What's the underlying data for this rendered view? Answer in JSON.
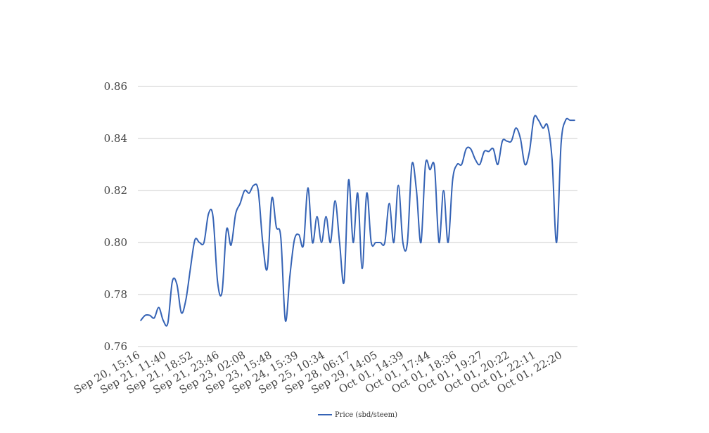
{
  "chart_data": {
    "type": "line",
    "title": "",
    "xlabel": "",
    "ylabel": "",
    "ylim": [
      0.76,
      0.86
    ],
    "y_ticks": [
      "0.76",
      "0.78",
      "0.80",
      "0.82",
      "0.84",
      "0.86"
    ],
    "x_tick_labels": [
      "Sep 20, 15:16",
      "Sep 21, 11:40",
      "Sep 21, 18:52",
      "Sep 21, 23:46",
      "Sep 23, 02:08",
      "Sep 23, 15:48",
      "Sep 24, 15:39",
      "Sep 25, 10:34",
      "Sep 28, 06:17",
      "Sep 29, 14:05",
      "Oct 01, 14:39",
      "Oct 01, 17:44",
      "Oct 01, 18:36",
      "Oct 01, 19:27",
      "Oct 01, 20:22",
      "Oct 01, 22:11",
      "Oct 01, 22:20"
    ],
    "grid": true,
    "legend_position": "bottom-center",
    "series": [
      {
        "name": "Price (sbd/steem)",
        "color": "#3563b5",
        "values": [
          0.77,
          0.772,
          0.772,
          0.771,
          0.775,
          0.77,
          0.769,
          0.785,
          0.784,
          0.773,
          0.778,
          0.79,
          0.801,
          0.8,
          0.8,
          0.811,
          0.81,
          0.785,
          0.781,
          0.805,
          0.799,
          0.811,
          0.815,
          0.82,
          0.819,
          0.822,
          0.82,
          0.8,
          0.79,
          0.817,
          0.806,
          0.802,
          0.77,
          0.787,
          0.801,
          0.803,
          0.799,
          0.821,
          0.8,
          0.81,
          0.8,
          0.81,
          0.8,
          0.816,
          0.8,
          0.785,
          0.824,
          0.8,
          0.819,
          0.79,
          0.819,
          0.8,
          0.8,
          0.8,
          0.8,
          0.815,
          0.8,
          0.822,
          0.8,
          0.8,
          0.83,
          0.82,
          0.8,
          0.83,
          0.828,
          0.829,
          0.8,
          0.82,
          0.8,
          0.824,
          0.83,
          0.83,
          0.836,
          0.836,
          0.832,
          0.83,
          0.835,
          0.835,
          0.836,
          0.83,
          0.839,
          0.839,
          0.839,
          0.844,
          0.84,
          0.83,
          0.835,
          0.848,
          0.847,
          0.844,
          0.845,
          0.832,
          0.8,
          0.838,
          0.847,
          0.847,
          0.847
        ]
      }
    ]
  }
}
